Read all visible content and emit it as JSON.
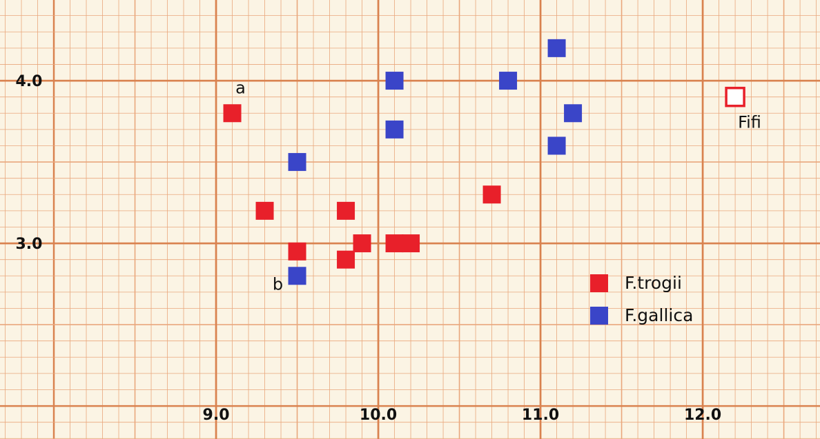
{
  "chart_data": {
    "type": "scatter",
    "xlim": [
      7.668,
      12.723
    ],
    "ylim": [
      1.797,
      4.496
    ],
    "xticks": [
      {
        "value": 9,
        "label": "9.0"
      },
      {
        "value": 10,
        "label": "10.0"
      },
      {
        "value": 11,
        "label": "11.0"
      },
      {
        "value": 12,
        "label": "12.0"
      }
    ],
    "yticks": [
      {
        "value": 3,
        "label": "3.0"
      },
      {
        "value": 4,
        "label": "4.0"
      }
    ],
    "grid": true,
    "legend": "lower right",
    "series": [
      {
        "name": "F.trogii",
        "color": "#e8202a",
        "x": [
          9.1,
          9.3,
          9.8,
          9.5,
          9.9,
          9.8,
          10.1,
          10.2,
          10.7
        ],
        "values": [
          3.8,
          3.2,
          3.2,
          2.95,
          3.0,
          2.9,
          3.0,
          3.0,
          3.3
        ]
      },
      {
        "name": "F.gallica",
        "color": "#3a45c8",
        "x": [
          11.1,
          10.1,
          10.8,
          11.2,
          10.1,
          11.1,
          9.5,
          9.5
        ],
        "values": [
          4.2,
          4.0,
          4.0,
          3.8,
          3.7,
          3.6,
          3.5,
          2.8
        ]
      }
    ],
    "highlight": {
      "label": "Fifi",
      "x": 12.2,
      "y": 3.9,
      "color": "#e8202a"
    },
    "annotations": [
      {
        "text": "a",
        "x": 9.1,
        "y": 3.8
      },
      {
        "text": "b",
        "x": 9.5,
        "y": 2.8
      }
    ]
  }
}
